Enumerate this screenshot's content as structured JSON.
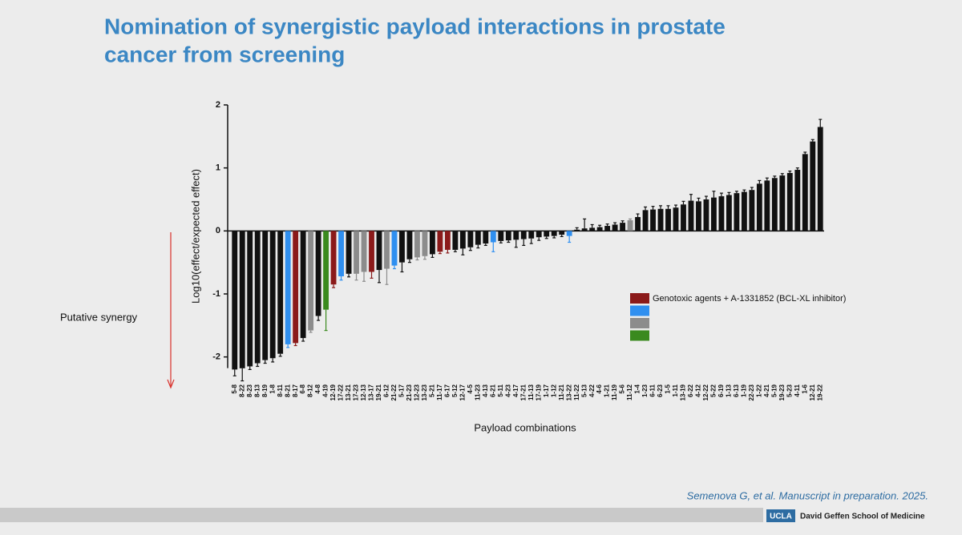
{
  "header": {
    "title_lines": [
      "Nomination of synergistic payload interactions in prostate",
      "cancer from screening"
    ]
  },
  "chart_data": {
    "type": "bar",
    "ylabel": "Log10(effect/expected effect)",
    "xlabel": "Payload combinations",
    "annotation": "Putative synergy",
    "ylim": [
      -2.5,
      2
    ],
    "yticks": [
      -2,
      -1,
      0,
      1,
      2
    ],
    "categories": [
      "5-8",
      "8-22",
      "8-23",
      "8-13",
      "8-19",
      "1-8",
      "8-11",
      "8-21",
      "8-17",
      "6-8",
      "8-12",
      "4-8",
      "4-19",
      "12-19",
      "17-22",
      "13-21",
      "17-23",
      "12-13",
      "13-17",
      "19-21",
      "6-12",
      "21-22",
      "5-17",
      "21-23",
      "12-23",
      "13-23",
      "5-21",
      "11-17",
      "6-17",
      "5-12",
      "12-17",
      "4-5",
      "11-23",
      "4-13",
      "6-21",
      "5-11",
      "4-23",
      "4-17",
      "17-21",
      "11-13",
      "17-19",
      "1-17",
      "1-12",
      "11-21",
      "13-22",
      "11-22",
      "5-13",
      "4-22",
      "4-6",
      "1-21",
      "11-19",
      "5-6",
      "11-12",
      "1-4",
      "1-23",
      "6-11",
      "6-23",
      "1-5",
      "1-11",
      "13-19",
      "6-22",
      "4-12",
      "12-22",
      "5-22",
      "6-19",
      "1-13",
      "6-13",
      "1-19",
      "22-23",
      "1-22",
      "4-21",
      "5-19",
      "19-23",
      "5-23",
      "4-11",
      "1-6",
      "12-21",
      "19-22"
    ],
    "values": [
      -2.2,
      -2.18,
      -2.15,
      -2.1,
      -2.05,
      -2.02,
      -1.95,
      -1.8,
      -1.78,
      -1.7,
      -1.58,
      -1.35,
      -1.25,
      -0.85,
      -0.72,
      -0.68,
      -0.68,
      -0.65,
      -0.65,
      -0.62,
      -0.6,
      -0.55,
      -0.5,
      -0.45,
      -0.42,
      -0.4,
      -0.37,
      -0.33,
      -0.3,
      -0.3,
      -0.28,
      -0.26,
      -0.22,
      -0.2,
      -0.18,
      -0.16,
      -0.15,
      -0.14,
      -0.13,
      -0.12,
      -0.1,
      -0.09,
      -0.08,
      -0.06,
      -0.08,
      0.02,
      0.04,
      0.05,
      0.06,
      0.08,
      0.1,
      0.13,
      0.17,
      0.22,
      0.33,
      0.34,
      0.35,
      0.35,
      0.37,
      0.42,
      0.48,
      0.47,
      0.5,
      0.53,
      0.55,
      0.57,
      0.6,
      0.62,
      0.65,
      0.75,
      0.8,
      0.84,
      0.88,
      0.92,
      0.97,
      1.22,
      1.42,
      1.65
    ],
    "errors": [
      0.1,
      0.2,
      0.05,
      0.05,
      0.05,
      0.06,
      0.04,
      0.05,
      0.04,
      0.05,
      0.03,
      0.07,
      0.33,
      0.05,
      0.06,
      0.05,
      0.1,
      0.15,
      0.1,
      0.2,
      0.25,
      0.05,
      0.15,
      0.05,
      0.04,
      0.05,
      0.05,
      0.03,
      0.05,
      0.03,
      0.1,
      0.05,
      0.05,
      0.03,
      0.15,
      0.03,
      0.03,
      0.12,
      0.1,
      0.08,
      0.05,
      0.03,
      0.03,
      0.03,
      0.1,
      0.03,
      0.15,
      0.05,
      0.03,
      0.03,
      0.03,
      0.03,
      0.02,
      0.05,
      0.05,
      0.05,
      0.05,
      0.05,
      0.04,
      0.05,
      0.1,
      0.05,
      0.05,
      0.1,
      0.05,
      0.04,
      0.03,
      0.03,
      0.04,
      0.05,
      0.04,
      0.03,
      0.03,
      0.03,
      0.03,
      0.03,
      0.03,
      0.12
    ],
    "bar_colors": [
      "#111111",
      "#111111",
      "#111111",
      "#111111",
      "#111111",
      "#111111",
      "#111111",
      "#2f8ff0",
      "#8b1a1a",
      "#111111",
      "#8c8c8c",
      "#111111",
      "#3a8a1e",
      "#8b1a1a",
      "#2f8ff0",
      "#111111",
      "#8c8c8c",
      "#8c8c8c",
      "#8b1a1a",
      "#111111",
      "#8c8c8c",
      "#2f8ff0",
      "#111111",
      "#111111",
      "#8c8c8c",
      "#8c8c8c",
      "#111111",
      "#8b1a1a",
      "#8b1a1a",
      "#111111",
      "#111111",
      "#111111",
      "#111111",
      "#111111",
      "#2f8ff0",
      "#111111",
      "#111111",
      "#111111",
      "#111111",
      "#111111",
      "#111111",
      "#111111",
      "#111111",
      "#111111",
      "#2f8ff0",
      "#111111",
      "#111111",
      "#111111",
      "#111111",
      "#111111",
      "#111111",
      "#111111",
      "#8c8c8c",
      "#111111",
      "#111111",
      "#111111",
      "#111111",
      "#111111",
      "#111111",
      "#111111",
      "#111111",
      "#111111",
      "#111111",
      "#111111",
      "#111111",
      "#111111",
      "#111111",
      "#111111",
      "#111111",
      "#111111",
      "#111111",
      "#111111",
      "#111111",
      "#111111",
      "#111111",
      "#111111",
      "#111111",
      "#111111"
    ],
    "legend": [
      {
        "color": "#8b1a1a",
        "label": "Genotoxic agents + A-1331852 (BCL-XL inhibitor)"
      },
      {
        "color": "#2f8ff0"
      },
      {
        "color": "#8c8c8c"
      },
      {
        "color": "#3a8a1e"
      }
    ]
  },
  "citation": "Semenova G, et al. Manuscript in preparation. 2025.",
  "footer": {
    "logo": "UCLA",
    "school": "David Geffen School of Medicine"
  }
}
